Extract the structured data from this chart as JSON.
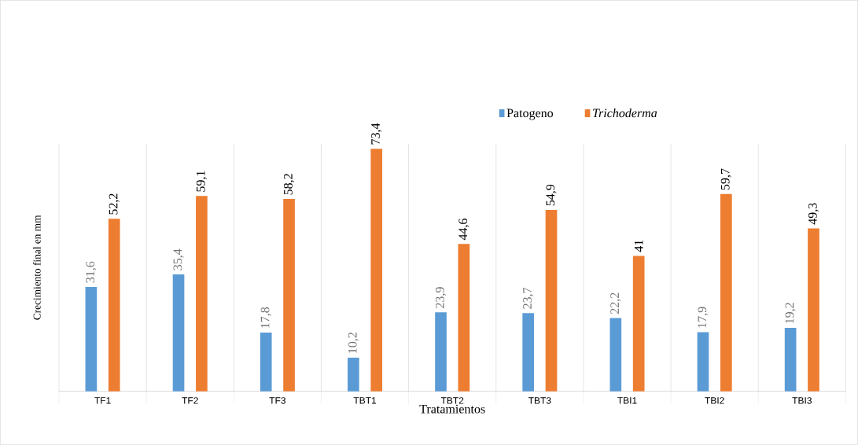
{
  "chart_data": {
    "type": "bar",
    "xlabel": "Tratamientos",
    "ylabel": "Crecimiento final en mm",
    "categories": [
      "TF1",
      "TF2",
      "TF3",
      "TBT1",
      "TBT2",
      "TBT3",
      "TBI1",
      "TBI2",
      "TBI3"
    ],
    "series": [
      {
        "name": "Patogeno",
        "color": "#5b9bd5",
        "values": [
          31.6,
          35.4,
          17.8,
          10.2,
          23.9,
          23.7,
          22.2,
          17.9,
          19.2
        ],
        "value_labels": [
          "31,6",
          "35,4",
          "17,8",
          "10,2",
          "23,9",
          "23,7",
          "22,2",
          "17,9",
          "19,2"
        ]
      },
      {
        "name": "*Trichoderma*",
        "color": "#ed7d31",
        "values": [
          52.2,
          59.1,
          58.2,
          73.4,
          44.6,
          54.9,
          41,
          59.7,
          49.3
        ],
        "value_labels": [
          "52,2",
          "59,1",
          "58,2",
          "73,4",
          "44,6",
          "54,9",
          "41",
          "59,7",
          "49,3"
        ]
      }
    ],
    "grid": "x",
    "legend": "top"
  }
}
